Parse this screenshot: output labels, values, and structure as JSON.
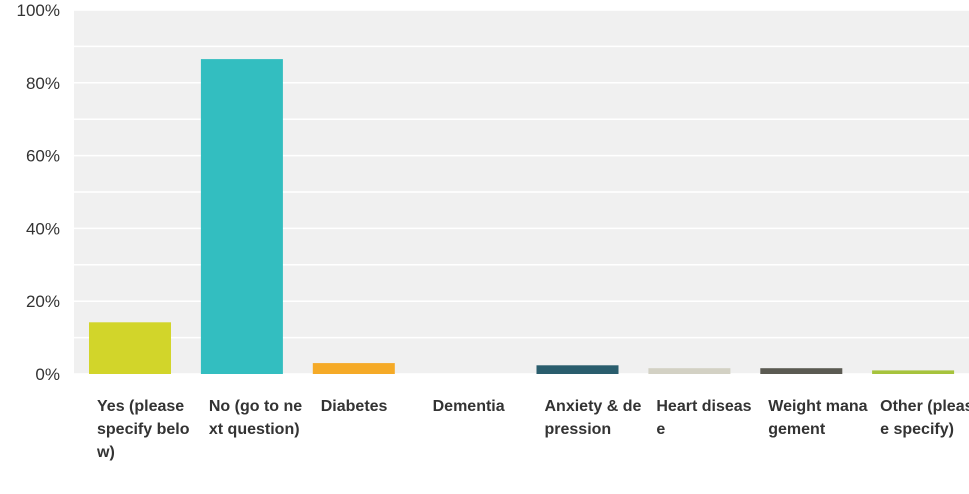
{
  "chart_data": {
    "type": "bar",
    "title": "",
    "xlabel": "",
    "ylabel": "",
    "ylim": [
      0,
      100
    ],
    "yticks": [
      "0%",
      "20%",
      "40%",
      "60%",
      "80%",
      "100%"
    ],
    "grid": true,
    "legend": "none",
    "categories": [
      "Yes (please specify below)",
      "No (go to next question)",
      "Diabetes",
      "Dementia",
      "Anxiety & depression",
      "Heart disease",
      "Weight management",
      "Other (please specify)"
    ],
    "values": [
      14.2,
      86.5,
      3.0,
      0.0,
      2.4,
      1.6,
      1.6,
      1.0
    ],
    "colors": [
      "#d2d52a",
      "#33bec0",
      "#f5aa27",
      "#c9c9c9",
      "#2a5d6d",
      "#d3d1c4",
      "#5b5a52",
      "#a6c33c"
    ]
  }
}
